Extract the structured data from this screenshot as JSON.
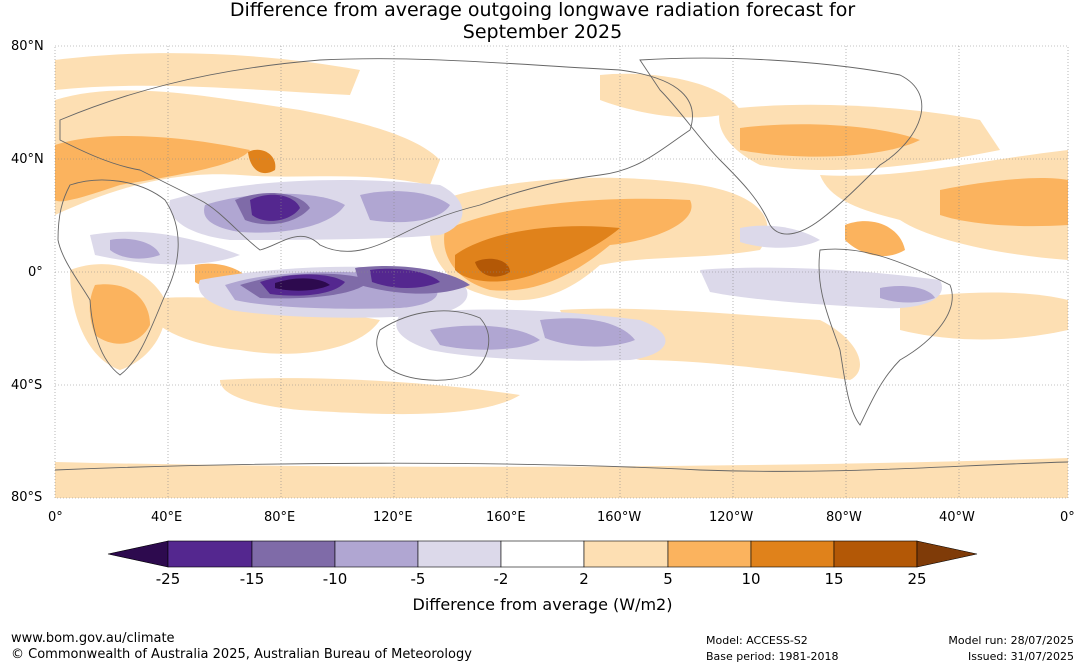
{
  "title_line1": "Difference from average outgoing longwave radiation forecast for",
  "title_line2": "September 2025",
  "lat_labels": [
    "80°N",
    "40°N",
    "0°",
    "40°S",
    "80°S"
  ],
  "lon_labels": [
    "0°",
    "40°E",
    "80°E",
    "120°E",
    "160°E",
    "160°W",
    "120°W",
    "80°W",
    "40°W",
    "0°"
  ],
  "colorbar": {
    "title": "Difference from average (W/m2)",
    "ticks": [
      "-25",
      "-15",
      "-10",
      "-5",
      "-2",
      "2",
      "5",
      "10",
      "15",
      "25"
    ],
    "colors": [
      "#2d0a4e",
      "#54278f",
      "#7f6ba8",
      "#b0a6d2",
      "#dcd9ea",
      "#ffffff",
      "#fddfb3",
      "#fbb35e",
      "#e0821b",
      "#b35806",
      "#7f3b08"
    ]
  },
  "footer": {
    "url": "www.bom.gov.au/climate",
    "copyright": "© Commonwealth of Australia 2025, Australian Bureau of Meteorology",
    "model": "Model: ACCESS-S2",
    "base_period": "Base period: 1981-2018",
    "model_run": "Model run: 28/07/2025",
    "issued": "Issued: 31/07/2025"
  }
}
